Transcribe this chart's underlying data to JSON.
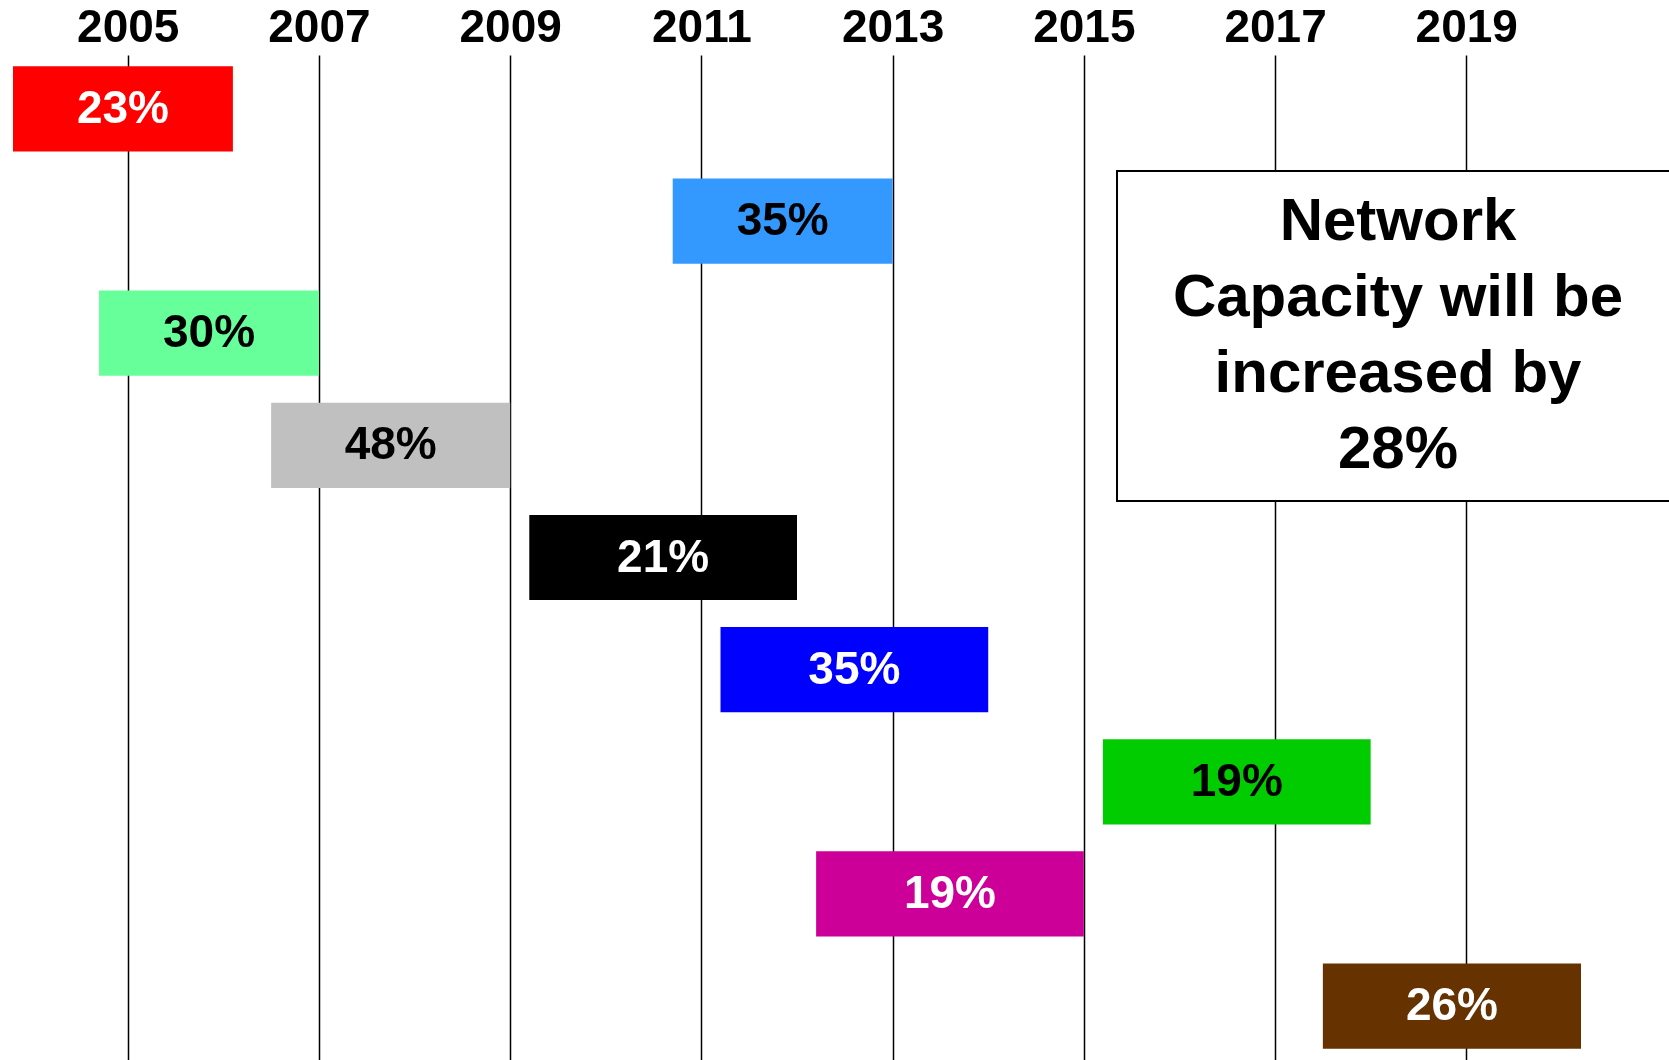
{
  "chart_data": {
    "type": "bar",
    "orientation": "horizontal",
    "categories": [
      null,
      null,
      null,
      null,
      null,
      null,
      null,
      null,
      null
    ],
    "base": [
      2003.8,
      2010.7,
      2004.7,
      2006.5,
      2009.2,
      2011.2,
      2015.2,
      2012.2,
      2017.5
    ],
    "values": [
      2.3,
      2.3,
      2.3,
      2.5,
      2.8,
      2.8,
      2.8,
      2.8,
      2.7
    ],
    "colors": [
      "#ff0000",
      "#3399ff",
      "#66ff99",
      "#c0c0c0",
      "#000000",
      "#0000ff",
      "#00cc00",
      "#cc0099",
      "#663300"
    ],
    "xlim": [
      2003.8,
      2020.2
    ],
    "xticks": [
      2005,
      2007,
      2009,
      2011,
      2013,
      2015,
      2017,
      2019
    ],
    "grid": "x",
    "annotations": [
      "23%",
      "35%",
      "30%",
      "48%",
      "21%",
      "35%",
      "19%",
      "19%",
      "26%",
      "Network\nCapacity will be\nincreased by\n28%"
    ]
  }
}
